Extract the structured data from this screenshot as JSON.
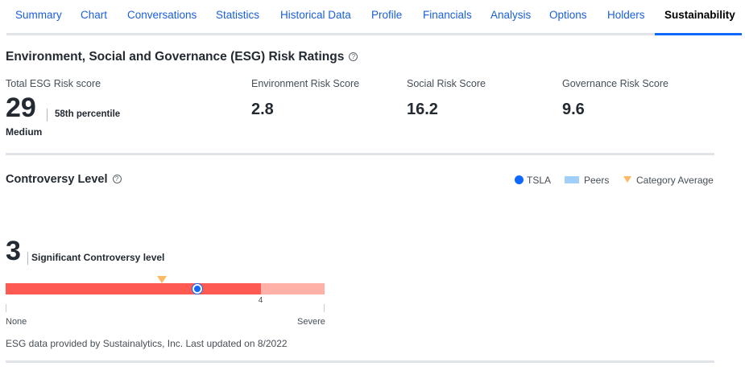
{
  "tabs": [
    {
      "label": "Summary"
    },
    {
      "label": "Chart"
    },
    {
      "label": "Conversations"
    },
    {
      "label": "Statistics"
    },
    {
      "label": "Historical Data"
    },
    {
      "label": "Profile"
    },
    {
      "label": "Financials"
    },
    {
      "label": "Analysis"
    },
    {
      "label": "Options"
    },
    {
      "label": "Holders"
    },
    {
      "label": "Sustainability",
      "active": true
    }
  ],
  "esg": {
    "title": "Environment, Social and Governance (ESG) Risk Ratings",
    "help_glyph": "?",
    "total": {
      "label": "Total ESG Risk score",
      "value": "29",
      "percentile": "58th percentile",
      "level": "Medium"
    },
    "environment": {
      "label": "Environment Risk Score",
      "value": "2.8"
    },
    "social": {
      "label": "Social Risk Score",
      "value": "16.2"
    },
    "governance": {
      "label": "Governance Risk Score",
      "value": "9.6"
    }
  },
  "controversy": {
    "title": "Controversy Level",
    "help_glyph": "?",
    "legend": {
      "ticker": "TSLA",
      "peers": "Peers",
      "category": "Category Average"
    },
    "value": "3",
    "level_label": "Significant Controversy level",
    "scale_min_label": "None",
    "scale_max_label": "Severe",
    "peer_max_tick": "4",
    "scale_max": 5,
    "ticker_value": 3,
    "category_average": 2.45,
    "peers_max": 4
  },
  "footnote": "ESG data provided by Sustainalytics, Inc.  Last updated on 8/2022",
  "colors": {
    "link": "#1a5fdc",
    "accent": "#0f69ff",
    "bar_main": "#ff5a52",
    "bar_rest": "#ffb0a7",
    "category_marker": "#fdb865",
    "peers": "#a0d0f8"
  }
}
